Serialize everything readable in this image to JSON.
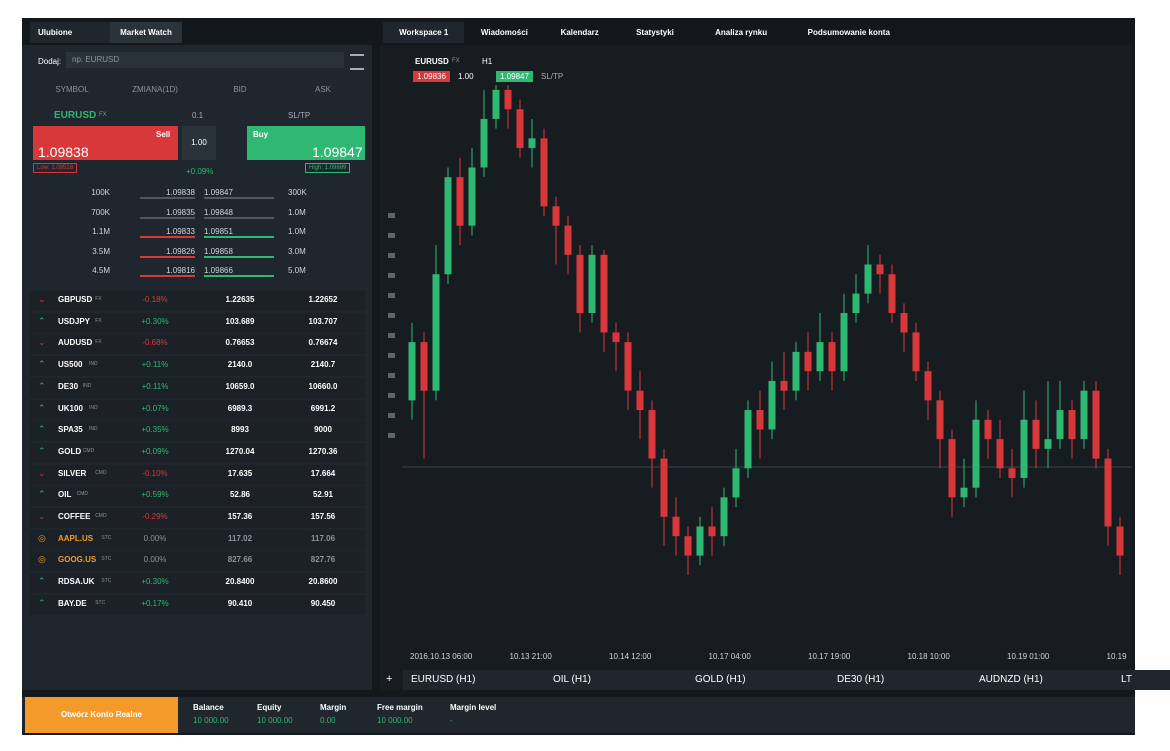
{
  "left_panel": {
    "tabs": [
      "Ulubione",
      "Market Watch"
    ],
    "search_label": "Dodaj:",
    "search_placeholder": "np. EURUSD",
    "columns": [
      "SYMBOL",
      "ZMIANA(1D)",
      "BID",
      "ASK"
    ],
    "selected": {
      "symbol": "EURUSD",
      "type": "FX",
      "lot": "0.1",
      "sltp": "SL/TP",
      "sell_label": "Sell",
      "sell_price": "1.09838",
      "volume": "1.00",
      "buy_label": "Buy",
      "buy_price": "1.09847",
      "low": "Low: 1.09518",
      "change": "+0.09%",
      "high": "High: 1.09889",
      "depth": [
        [
          "100K",
          "1.09838",
          "1.09847",
          "300K"
        ],
        [
          "700K",
          "1.09835",
          "1.09848",
          "1.0M"
        ],
        [
          "1.1M",
          "1.09833",
          "1.09851",
          "1.0M"
        ],
        [
          "3.5M",
          "1.09826",
          "1.09858",
          "3.0M"
        ],
        [
          "4.5M",
          "1.09816",
          "1.09866",
          "5.0M"
        ]
      ]
    },
    "instruments": [
      {
        "symbol": "GBPUSD",
        "type": "FX",
        "change": "-0.18%",
        "bid": "1.22635",
        "ask": "1.22652"
      },
      {
        "symbol": "USDJPY",
        "type": "FX",
        "change": "+0.30%",
        "bid": "103.689",
        "ask": "103.707"
      },
      {
        "symbol": "AUDUSD",
        "type": "FX",
        "change": "-0.68%",
        "bid": "0.76653",
        "ask": "0.76674"
      },
      {
        "symbol": "US500",
        "type": "IND",
        "change": "+0.11%",
        "bid": "2140.0",
        "ask": "2140.7"
      },
      {
        "symbol": "DE30",
        "type": "IND",
        "change": "+0.11%",
        "bid": "10659.0",
        "ask": "10660.0"
      },
      {
        "symbol": "UK100",
        "type": "IND",
        "change": "+0.07%",
        "bid": "6989.3",
        "ask": "6991.2"
      },
      {
        "symbol": "SPA35",
        "type": "IND",
        "change": "+0.35%",
        "bid": "8993",
        "ask": "9000"
      },
      {
        "symbol": "GOLD",
        "type": "CMD",
        "change": "+0.09%",
        "bid": "1270.04",
        "ask": "1270.36"
      },
      {
        "symbol": "SILVER",
        "type": "CMD",
        "change": "-0.10%",
        "bid": "17.635",
        "ask": "17.664"
      },
      {
        "symbol": "OIL",
        "type": "CMD",
        "change": "+0.59%",
        "bid": "52.86",
        "ask": "52.91"
      },
      {
        "symbol": "COFFEE",
        "type": "CMD",
        "change": "-0.29%",
        "bid": "157.36",
        "ask": "157.56"
      },
      {
        "symbol": "AAPL.US",
        "type": "STC",
        "change": "0.00%",
        "bid": "117.02",
        "ask": "117.06"
      },
      {
        "symbol": "GOOG.US",
        "type": "STC",
        "change": "0.00%",
        "bid": "827.66",
        "ask": "827.76"
      },
      {
        "symbol": "RDSA.UK",
        "type": "STC",
        "change": "+0.30%",
        "bid": "20.8400",
        "ask": "20.8600"
      },
      {
        "symbol": "BAY.DE",
        "type": "STC",
        "change": "+0.17%",
        "bid": "90.410",
        "ask": "90.450"
      }
    ]
  },
  "workspace": {
    "tabs": [
      "Workspace 1",
      "Wiadomości",
      "Kalendarz",
      "Statystyki",
      "Analiza rynku",
      "Podsumowanie konta"
    ],
    "chart": {
      "symbol": "EURUSD",
      "type": "FX",
      "timeframe": "H1",
      "sell": "1.09836",
      "volume": "1.00",
      "buy": "1.09847",
      "sltp": "SL/TP",
      "x_labels": [
        "2016.10.13 06:00",
        "10.13 21:00",
        "10.14 12:00",
        "10.17 04:00",
        "10.17 19:00",
        "10.18 10:00",
        "10.19 01:00",
        "10.19"
      ],
      "candles": [
        [
          240,
          320,
          220,
          300
        ],
        [
          300,
          310,
          180,
          250
        ],
        [
          250,
          400,
          240,
          370
        ],
        [
          370,
          480,
          360,
          470
        ],
        [
          470,
          490,
          400,
          420
        ],
        [
          420,
          500,
          410,
          480
        ],
        [
          480,
          560,
          470,
          530
        ],
        [
          530,
          565,
          520,
          560
        ],
        [
          560,
          565,
          520,
          540
        ],
        [
          540,
          550,
          490,
          500
        ],
        [
          500,
          530,
          480,
          510
        ],
        [
          510,
          520,
          430,
          440
        ],
        [
          440,
          450,
          380,
          420
        ],
        [
          420,
          430,
          370,
          390
        ],
        [
          390,
          400,
          310,
          330
        ],
        [
          330,
          400,
          320,
          390
        ],
        [
          390,
          395,
          290,
          310
        ],
        [
          310,
          320,
          270,
          300
        ],
        [
          300,
          310,
          230,
          250
        ],
        [
          250,
          270,
          200,
          230
        ],
        [
          230,
          240,
          150,
          180
        ],
        [
          180,
          190,
          90,
          120
        ],
        [
          120,
          140,
          80,
          100
        ],
        [
          100,
          110,
          60,
          80
        ],
        [
          80,
          120,
          70,
          110
        ],
        [
          110,
          130,
          80,
          100
        ],
        [
          100,
          150,
          90,
          140
        ],
        [
          140,
          190,
          130,
          170
        ],
        [
          170,
          240,
          160,
          230
        ],
        [
          230,
          250,
          180,
          210
        ],
        [
          210,
          280,
          200,
          260
        ],
        [
          260,
          290,
          230,
          250
        ],
        [
          250,
          300,
          240,
          290
        ],
        [
          290,
          310,
          250,
          270
        ],
        [
          270,
          330,
          260,
          300
        ],
        [
          300,
          310,
          250,
          270
        ],
        [
          270,
          350,
          260,
          330
        ],
        [
          330,
          370,
          320,
          350
        ],
        [
          350,
          400,
          340,
          380
        ],
        [
          380,
          390,
          350,
          370
        ],
        [
          370,
          380,
          320,
          330
        ],
        [
          330,
          340,
          290,
          310
        ],
        [
          310,
          320,
          260,
          270
        ],
        [
          270,
          280,
          220,
          240
        ],
        [
          240,
          250,
          170,
          200
        ],
        [
          200,
          210,
          120,
          140
        ],
        [
          140,
          180,
          130,
          150
        ],
        [
          150,
          240,
          140,
          220
        ],
        [
          220,
          230,
          180,
          200
        ],
        [
          200,
          220,
          160,
          170
        ],
        [
          170,
          190,
          140,
          160
        ],
        [
          160,
          250,
          150,
          220
        ],
        [
          220,
          240,
          170,
          190
        ],
        [
          190,
          260,
          170,
          200
        ],
        [
          200,
          260,
          190,
          230
        ],
        [
          230,
          240,
          180,
          200
        ],
        [
          200,
          260,
          190,
          250
        ],
        [
          250,
          260,
          170,
          180
        ],
        [
          180,
          190,
          90,
          110
        ],
        [
          110,
          120,
          60,
          80
        ]
      ]
    },
    "chart_tabs": [
      "EURUSD (H1)",
      "OIL (H1)",
      "GOLD (H1)",
      "DE30 (H1)",
      "AUDNZD (H1)",
      "LT"
    ]
  },
  "footer": {
    "button": "Otwórz Konto Realne",
    "stats": [
      {
        "label": "Balance",
        "value": "10 000.00"
      },
      {
        "label": "Equity",
        "value": "10 000.00"
      },
      {
        "label": "Margin",
        "value": "0.00"
      },
      {
        "label": "Free margin",
        "value": "10 000.00"
      },
      {
        "label": "Margin level",
        "value": "-"
      }
    ]
  }
}
